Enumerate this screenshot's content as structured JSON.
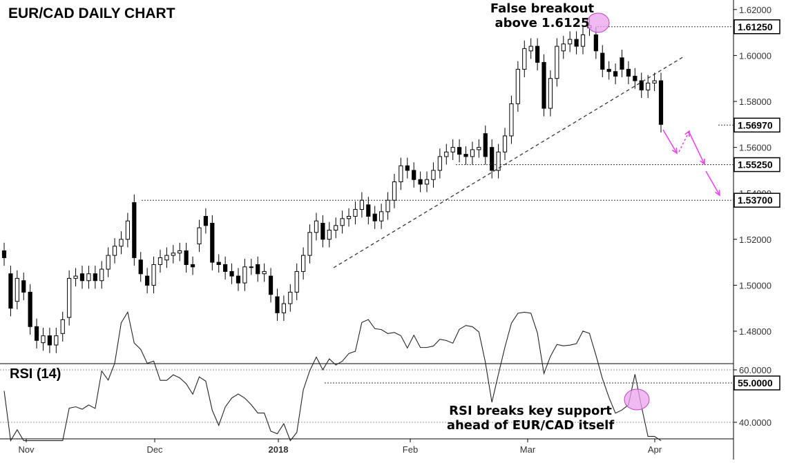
{
  "chart_data": [
    {
      "type": "candlestick",
      "title": "EUR/CAD DAILY CHART",
      "ylim": [
        1.47,
        1.625
      ],
      "y_ticks": [
        "1.48000",
        "1.50000",
        "1.52000",
        "1.54000",
        "1.56000",
        "1.58000",
        "1.60000",
        "1.62000"
      ],
      "x_tick_labels": [
        "Nov",
        "Dec",
        "2018",
        "Feb",
        "Mar",
        "Apr"
      ],
      "key_levels": [
        {
          "label": "1.61250",
          "value": 1.6125
        },
        {
          "label": "1.56970",
          "value": 1.5697
        },
        {
          "label": "1.55250",
          "value": 1.5525
        },
        {
          "label": "1.53700",
          "value": 1.537
        }
      ],
      "annotations": {
        "false_breakout_line1": "False breakout",
        "false_breakout_line2": "above 1.6125"
      },
      "closes": [
        1.512,
        1.49,
        1.503,
        1.497,
        1.482,
        1.476,
        1.478,
        1.474,
        1.478,
        1.485,
        1.503,
        1.504,
        1.502,
        1.505,
        1.502,
        1.507,
        1.513,
        1.517,
        1.52,
        1.528,
        1.512,
        1.505,
        1.5,
        1.509,
        1.512,
        1.513,
        1.514,
        1.515,
        1.509,
        1.508,
        1.525,
        1.526,
        1.51,
        1.509,
        1.506,
        1.504,
        1.501,
        1.508,
        1.508,
        1.505,
        1.506,
        1.496,
        1.488,
        1.492,
        1.497,
        1.506,
        1.513,
        1.523,
        1.528,
        1.52,
        1.524,
        1.526,
        1.529,
        1.53,
        1.533,
        1.537,
        1.53,
        1.528,
        1.532,
        1.537,
        1.545,
        1.552,
        1.55,
        1.546,
        1.544,
        1.546,
        1.55,
        1.556,
        1.558,
        1.56,
        1.557,
        1.556,
        1.559,
        1.56,
        1.556,
        1.55,
        1.558,
        1.565,
        1.579,
        1.594,
        1.603,
        1.604,
        1.597,
        1.577,
        1.59,
        1.604,
        1.605,
        1.607,
        1.604,
        1.609,
        1.613,
        1.602,
        1.594,
        1.593,
        1.591,
        1.594,
        1.591,
        1.589,
        1.585,
        1.588,
        1.589,
        1.57
      ],
      "opens": [
        1.515,
        1.505,
        1.493,
        1.502,
        1.497,
        1.482,
        1.475,
        1.478,
        1.474,
        1.479,
        1.486,
        1.503,
        1.505,
        1.502,
        1.505,
        1.502,
        1.507,
        1.513,
        1.517,
        1.52,
        1.536,
        1.511,
        1.504,
        1.5,
        1.509,
        1.511,
        1.513,
        1.514,
        1.515,
        1.509,
        1.518,
        1.53,
        1.527,
        1.51,
        1.509,
        1.506,
        1.504,
        1.501,
        1.508,
        1.509,
        1.505,
        1.504,
        1.495,
        1.488,
        1.492,
        1.497,
        1.506,
        1.513,
        1.523,
        1.527,
        1.52,
        1.524,
        1.526,
        1.529,
        1.53,
        1.533,
        1.535,
        1.531,
        1.528,
        1.532,
        1.537,
        1.545,
        1.552,
        1.55,
        1.546,
        1.544,
        1.546,
        1.55,
        1.556,
        1.558,
        1.56,
        1.557,
        1.556,
        1.559,
        1.566,
        1.56,
        1.55,
        1.558,
        1.565,
        1.579,
        1.594,
        1.602,
        1.604,
        1.597,
        1.577,
        1.59,
        1.602,
        1.605,
        1.607,
        1.604,
        1.612,
        1.609,
        1.601,
        1.594,
        1.593,
        1.599,
        1.594,
        1.591,
        1.589,
        1.585,
        1.588,
        1.589
      ],
      "rsi": {
        "title": "RSI (14)",
        "ylim": [
          33,
          82
        ],
        "y_ticks": [
          "40.0000",
          "60.0000"
        ],
        "key_level": {
          "label": "55.0000",
          "value": 55
        },
        "annotation_line1": "RSI breaks key support",
        "annotation_line2": "ahead of EUR/CAD itself"
      }
    }
  ]
}
